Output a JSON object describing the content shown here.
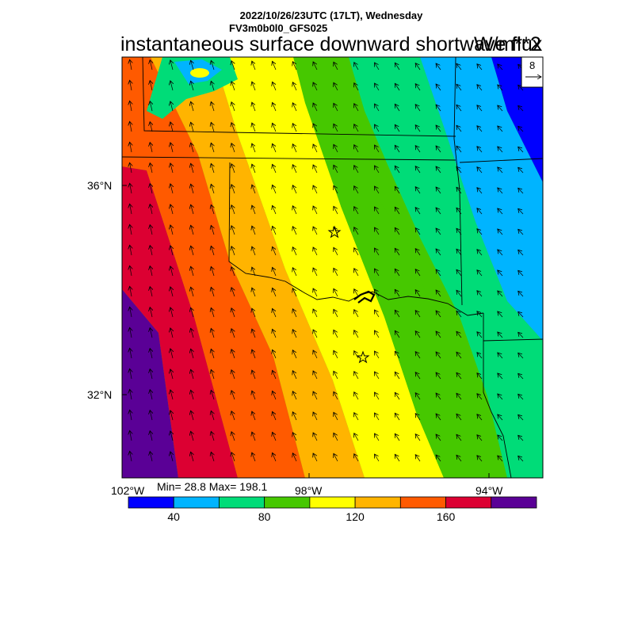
{
  "header": {
    "datetime": "2022/10/26/23UTC (17LT), Wednesday",
    "model": "FV3m0b0l0_GFS025",
    "title": "instantaneous surface downward shortwave flux",
    "units": "W/m**2"
  },
  "map": {
    "lat_labels": [
      "36°N",
      "32°N"
    ],
    "lon_labels": [
      "102°W",
      "98°W",
      "94°W"
    ],
    "markers": [
      "star",
      "star"
    ],
    "vector_reference": {
      "label": "8",
      "icon": "right-arrow-icon"
    },
    "wind_direction": "north-northwest",
    "gradient_direction": "field decreases toward the north-east"
  },
  "stats": {
    "text": "Min= 28.8 Max= 198.1",
    "min": 28.8,
    "max": 198.1
  },
  "colorbar": {
    "colors": [
      "#0000ff",
      "#00b4ff",
      "#00dc78",
      "#46c800",
      "#ffff00",
      "#ffb400",
      "#ff5a00",
      "#dc0032",
      "#5a0096"
    ],
    "tick_labels": [
      "40",
      "80",
      "120",
      "160"
    ],
    "tick_values": [
      40,
      80,
      120,
      160
    ],
    "range": [
      20,
      200
    ],
    "step": 20
  }
}
